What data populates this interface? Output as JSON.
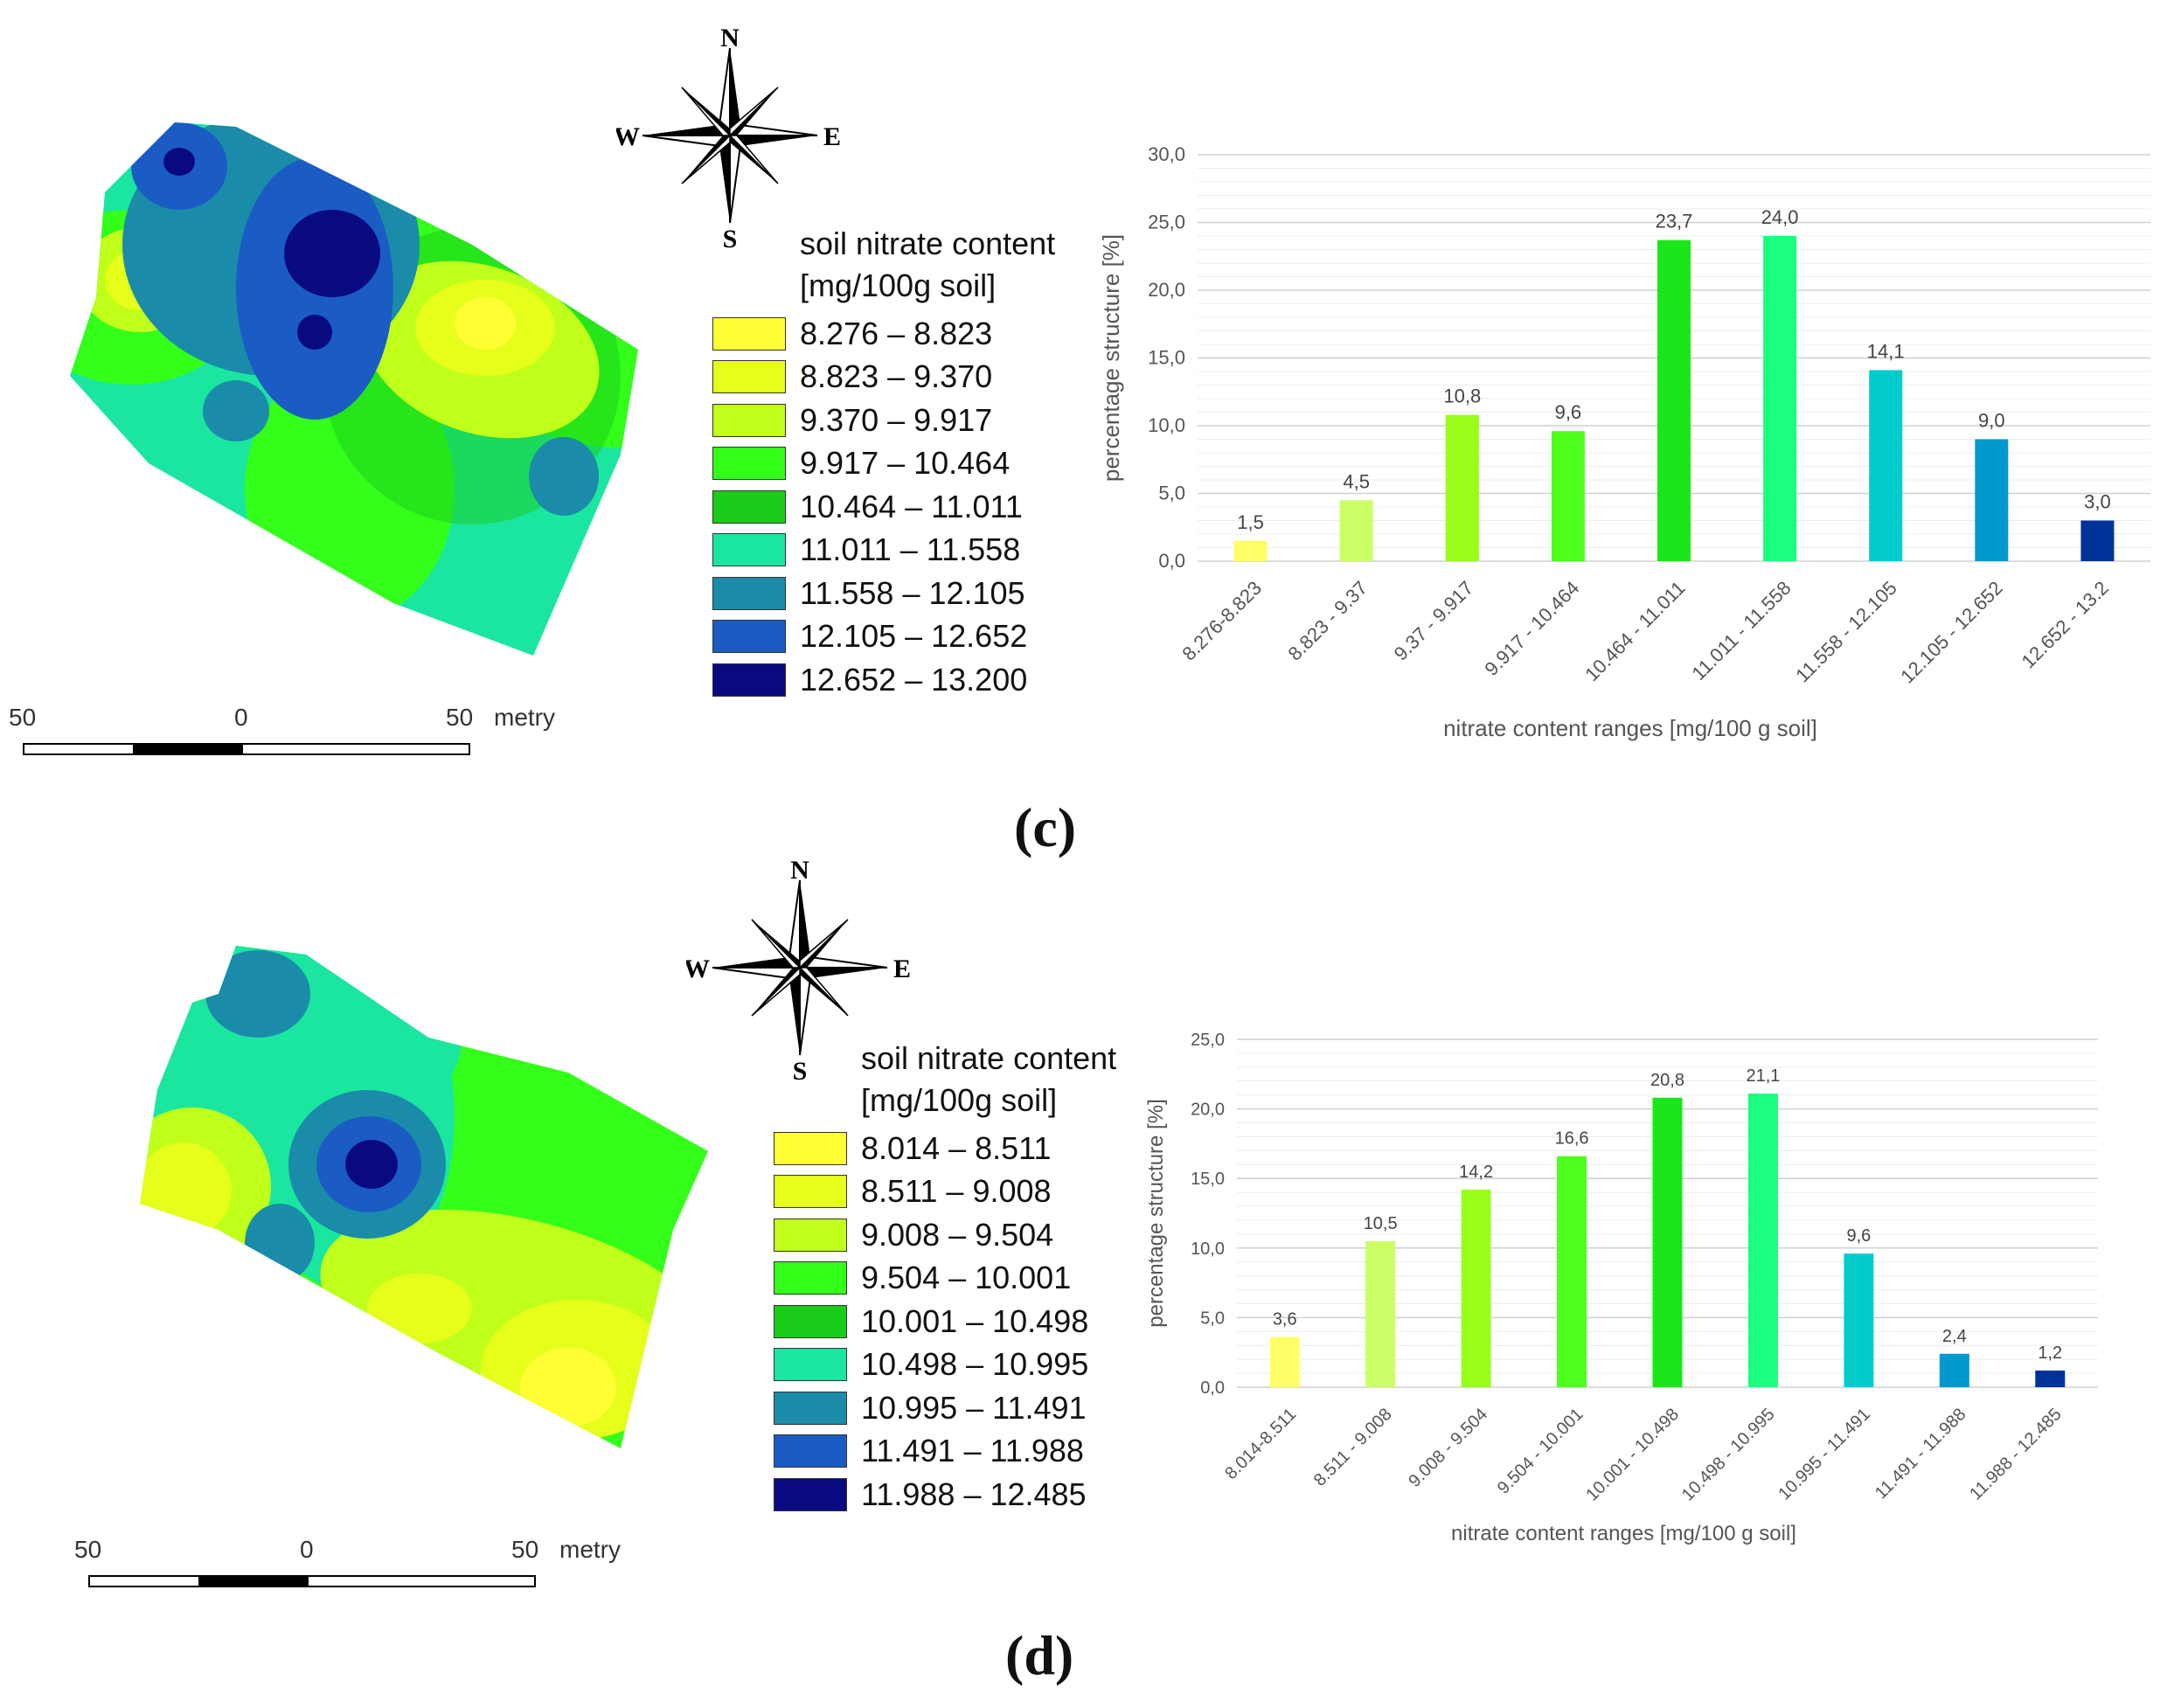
{
  "panels": [
    {
      "id": "c",
      "label": "(c)",
      "compass": {
        "n": "N",
        "s": "S",
        "e": "E",
        "w": "W"
      },
      "legend": {
        "title_line1": "soil nitrate content",
        "title_line2": "[mg/100g soil]",
        "items": [
          {
            "label": "8.276 – 8.823",
            "color": "#ffff33"
          },
          {
            "label": "8.823 – 9.370",
            "color": "#e6ff1a"
          },
          {
            "label": "9.370 – 9.917",
            "color": "#bfff1a"
          },
          {
            "label": "9.917 – 10.464",
            "color": "#33ff1a"
          },
          {
            "label": "10.464 – 11.011",
            "color": "#1acc1a"
          },
          {
            "label": "11.011 – 11.558",
            "color": "#1ae6a0"
          },
          {
            "label": "11.558 – 12.105",
            "color": "#1a8caa"
          },
          {
            "label": "12.105 – 12.652",
            "color": "#1a5cc4"
          },
          {
            "label": "12.652 – 13.200",
            "color": "#0a0a80"
          }
        ]
      },
      "scalebar": {
        "left": "50",
        "mid": "0",
        "right": "50",
        "unit": "metry"
      },
      "chart_data": {
        "type": "bar",
        "categories": [
          "8.276-8.823",
          "8.823 - 9.37",
          "9.37 - 9.917",
          "9.917 - 10.464",
          "10.464 - 11.011",
          "11.011 - 11.558",
          "11.558 - 12.105",
          "12.105 - 12.652",
          "12.652 - 13.2"
        ],
        "values": [
          1.5,
          4.5,
          10.8,
          9.6,
          23.7,
          24.0,
          14.1,
          9.0,
          3.0
        ],
        "value_labels": [
          "1,5",
          "4,5",
          "10,8",
          "9,6",
          "23,7",
          "24,0",
          "14,1",
          "9,0",
          "3,0"
        ],
        "bar_colors": [
          "#ffff66",
          "#ccff66",
          "#99ff1a",
          "#4dff1a",
          "#1ae61a",
          "#1aff80",
          "#00cccc",
          "#0099cc",
          "#003399"
        ],
        "ylim": [
          0,
          30
        ],
        "yticks": [
          0,
          5,
          10,
          15,
          20,
          25,
          30
        ],
        "ytick_labels": [
          "0,0",
          "5,0",
          "10,0",
          "15,0",
          "20,0",
          "25,0",
          "30,0"
        ],
        "xlabel": "nitrate content ranges [mg/100 g soil]",
        "ylabel": "percentage structure [%]",
        "grid": true
      }
    },
    {
      "id": "d",
      "label": "(d)",
      "compass": {
        "n": "N",
        "s": "S",
        "e": "E",
        "w": "W"
      },
      "legend": {
        "title_line1": "soil nitrate content",
        "title_line2": "[mg/100g soil]",
        "items": [
          {
            "label": "8.014 – 8.511",
            "color": "#ffff33"
          },
          {
            "label": "8.511 – 9.008",
            "color": "#e6ff1a"
          },
          {
            "label": "9.008 – 9.504",
            "color": "#bfff1a"
          },
          {
            "label": "9.504 – 10.001",
            "color": "#33ff1a"
          },
          {
            "label": "10.001 – 10.498",
            "color": "#1acc1a"
          },
          {
            "label": "10.498 – 10.995",
            "color": "#1ae6a0"
          },
          {
            "label": "10.995 – 11.491",
            "color": "#1a8caa"
          },
          {
            "label": "11.491 – 11.988",
            "color": "#1a5cc4"
          },
          {
            "label": "11.988 – 12.485",
            "color": "#0a0a80"
          }
        ]
      },
      "scalebar": {
        "left": "50",
        "mid": "0",
        "right": "50",
        "unit": "metry"
      },
      "chart_data": {
        "type": "bar",
        "categories": [
          "8.014-8.511",
          "8.511 - 9.008",
          "9.008 - 9.504",
          "9.504 - 10.001",
          "10.001 - 10.498",
          "10.498 - 10.995",
          "10.995 - 11.491",
          "11.491 - 11.988",
          "11.988 - 12.485"
        ],
        "values": [
          3.6,
          10.5,
          14.2,
          16.6,
          20.8,
          21.1,
          9.6,
          2.4,
          1.2
        ],
        "value_labels": [
          "3,6",
          "10,5",
          "14,2",
          "16,6",
          "20,8",
          "21,1",
          "9,6",
          "2,4",
          "1,2"
        ],
        "bar_colors": [
          "#ffff66",
          "#ccff66",
          "#99ff1a",
          "#4dff1a",
          "#1ae61a",
          "#1aff80",
          "#00cccc",
          "#0099cc",
          "#003399"
        ],
        "ylim": [
          0,
          25
        ],
        "yticks": [
          0,
          5,
          10,
          15,
          20,
          25
        ],
        "ytick_labels": [
          "0,0",
          "5,0",
          "10,0",
          "15,0",
          "20,0",
          "25,0"
        ],
        "xlabel": "nitrate content ranges [mg/100 g soil]",
        "ylabel": "percentage structure [%]",
        "grid": true
      }
    }
  ]
}
